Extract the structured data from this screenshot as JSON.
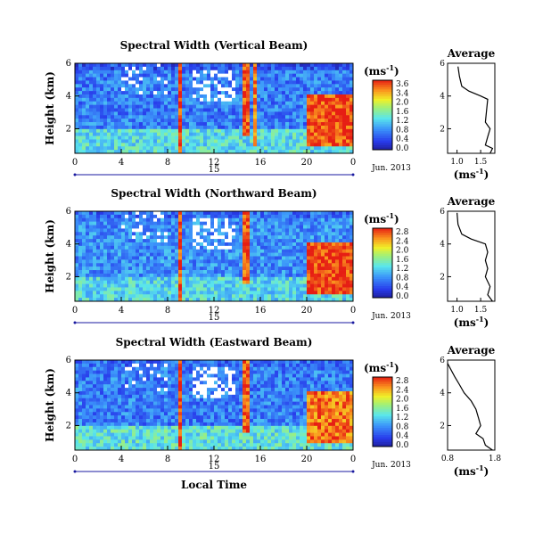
{
  "figure": {
    "xlabel": "Local Time",
    "date_label": "Jun. 2013",
    "day_label": "15",
    "ylabel": "Height (km)",
    "unit_label": "(ms",
    "unit_exp": "-1",
    "unit_close": ")",
    "avg_title": "Average"
  },
  "chart_data": [
    {
      "type": "heatmap",
      "title": "Spectral Width (Vertical Beam)",
      "xlabel": "Local Time",
      "ylabel": "Height (km)",
      "x_ticks": [
        "0",
        "4",
        "8",
        "12",
        "16",
        "20",
        "0"
      ],
      "x_range": [
        0,
        24
      ],
      "y_ticks": [
        "6",
        "4",
        "2"
      ],
      "y_range": [
        0.5,
        6
      ],
      "colorbar_label": "(ms-1)",
      "colorbar_ticks": [
        "3.6",
        "3.4",
        "2.0",
        "1.6",
        "1.2",
        "0.8",
        "0.4",
        "0.0"
      ],
      "colorbar_range": [
        0,
        3.6
      ],
      "date": "Jun. 2013",
      "day": "15",
      "regions": [
        {
          "t0": 0,
          "t1": 24,
          "h0": 0.5,
          "h1": 2,
          "value": 1.6
        },
        {
          "t0": 0,
          "t1": 24,
          "h0": 2,
          "h1": 5.5,
          "value": 0.9
        },
        {
          "t0": 8.9,
          "t1": 9.3,
          "h0": 0.5,
          "h1": 6,
          "value": 3.5
        },
        {
          "t0": 14.6,
          "t1": 15.0,
          "h0": 1.5,
          "h1": 6,
          "value": 3.4
        },
        {
          "t0": 15.4,
          "t1": 15.7,
          "h0": 1,
          "h1": 6,
          "value": 3.2
        },
        {
          "t0": 20,
          "t1": 24,
          "h0": 1,
          "h1": 4,
          "value": 3.4
        }
      ]
    },
    {
      "type": "line",
      "title": "Average",
      "xlabel": "(ms-1)",
      "x_ticks": [
        "1.0",
        "1.5"
      ],
      "x_range": [
        0.8,
        1.8
      ],
      "y_ticks": [
        "6",
        "4",
        "2"
      ],
      "y_range": [
        0.5,
        6
      ],
      "x": [
        1.02,
        1.05,
        1.1,
        1.25,
        1.5,
        1.65,
        1.62,
        1.6,
        1.7,
        1.65,
        1.6,
        1.75,
        1.7
      ],
      "y": [
        5.8,
        5.2,
        4.6,
        4.3,
        4.0,
        3.8,
        3.0,
        2.4,
        2.0,
        1.5,
        1.0,
        0.8,
        0.5
      ]
    },
    {
      "type": "heatmap",
      "title": "Spectral Width (Northward Beam)",
      "xlabel": "Local Time",
      "ylabel": "Height (km)",
      "x_ticks": [
        "0",
        "4",
        "8",
        "12",
        "16",
        "20",
        "0"
      ],
      "x_range": [
        0,
        24
      ],
      "y_ticks": [
        "6",
        "4",
        "2"
      ],
      "y_range": [
        0.5,
        6
      ],
      "colorbar_label": "(ms-1)",
      "colorbar_ticks": [
        "2.8",
        "2.4",
        "2.0",
        "1.6",
        "1.2",
        "0.8",
        "0.4",
        "0.0"
      ],
      "colorbar_range": [
        0,
        2.8
      ],
      "date": "Jun. 2013",
      "day": "15",
      "regions": [
        {
          "t0": 0,
          "t1": 24,
          "h0": 0.5,
          "h1": 2,
          "value": 1.2
        },
        {
          "t0": 0,
          "t1": 24,
          "h0": 2,
          "h1": 5.5,
          "value": 0.8
        },
        {
          "t0": 8.9,
          "t1": 9.3,
          "h0": 0.5,
          "h1": 6,
          "value": 2.7
        },
        {
          "t0": 14.6,
          "t1": 15.0,
          "h0": 1.5,
          "h1": 6,
          "value": 2.6
        },
        {
          "t0": 20,
          "t1": 24,
          "h0": 1,
          "h1": 4,
          "value": 2.7
        }
      ]
    },
    {
      "type": "line",
      "title": "Average",
      "xlabel": "(ms-1)",
      "x_ticks": [
        "1.0",
        "1.5"
      ],
      "x_range": [
        0.8,
        1.8
      ],
      "y_ticks": [
        "6",
        "4",
        "2"
      ],
      "y_range": [
        0.5,
        6
      ],
      "x": [
        1.0,
        1.02,
        1.1,
        1.3,
        1.6,
        1.65,
        1.6,
        1.65,
        1.6,
        1.7,
        1.65,
        1.75
      ],
      "y": [
        5.9,
        5.2,
        4.6,
        4.3,
        4.0,
        3.5,
        3.0,
        2.5,
        2.0,
        1.4,
        0.9,
        0.5
      ]
    },
    {
      "type": "heatmap",
      "title": "Spectral Width (Eastward Beam)",
      "xlabel": "Local Time",
      "ylabel": "Height (km)",
      "x_ticks": [
        "0",
        "4",
        "8",
        "12",
        "16",
        "20",
        "0"
      ],
      "x_range": [
        0,
        24
      ],
      "y_ticks": [
        "6",
        "4",
        "2"
      ],
      "y_range": [
        0.5,
        6
      ],
      "colorbar_label": "(ms-1)",
      "colorbar_ticks": [
        "2.8",
        "2.4",
        "2.0",
        "1.6",
        "1.2",
        "0.8",
        "0.4",
        "0.0"
      ],
      "colorbar_range": [
        0,
        2.8
      ],
      "date": "Jun. 2013",
      "day": "15",
      "regions": [
        {
          "t0": 0,
          "t1": 24,
          "h0": 0.5,
          "h1": 2,
          "value": 1.3
        },
        {
          "t0": 0,
          "t1": 24,
          "h0": 2,
          "h1": 5.5,
          "value": 0.7
        },
        {
          "t0": 8.9,
          "t1": 9.3,
          "h0": 0.5,
          "h1": 6,
          "value": 2.7
        },
        {
          "t0": 14.6,
          "t1": 15.0,
          "h0": 1.5,
          "h1": 6,
          "value": 2.6
        },
        {
          "t0": 20,
          "t1": 24,
          "h0": 1,
          "h1": 4,
          "value": 2.5
        }
      ]
    },
    {
      "type": "line",
      "title": "Average",
      "xlabel": "(ms-1)",
      "x_ticks": [
        "0.8",
        "1.8"
      ],
      "x_range": [
        0.8,
        1.8
      ],
      "y_ticks": [
        "6",
        "4",
        "2"
      ],
      "y_range": [
        0.5,
        6
      ],
      "x": [
        0.8,
        0.95,
        1.05,
        1.15,
        1.3,
        1.4,
        1.45,
        1.5,
        1.4,
        1.55,
        1.6,
        1.75
      ],
      "y": [
        5.8,
        5.0,
        4.5,
        4.0,
        3.5,
        3.0,
        2.5,
        2.0,
        1.5,
        1.2,
        0.8,
        0.5
      ]
    }
  ]
}
